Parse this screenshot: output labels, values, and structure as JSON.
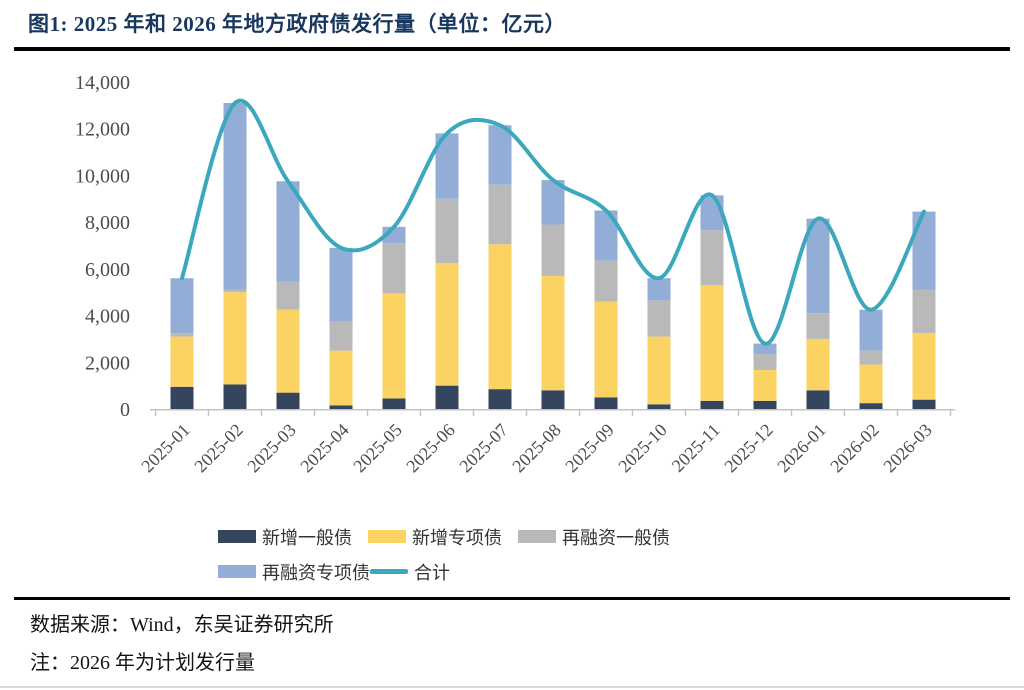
{
  "header": {
    "title": "图1:  2025 年和 2026 年地方政府债发行量（单位：亿元）"
  },
  "chart_data": {
    "type": "bar+line",
    "stacked": true,
    "title": "2025 年和 2026 年地方政府债发行量",
    "unit": "亿元",
    "categories": [
      "2025-01",
      "2025-02",
      "2025-03",
      "2025-04",
      "2025-05",
      "2025-06",
      "2025-07",
      "2025-08",
      "2025-09",
      "2025-10",
      "2025-11",
      "2025-12",
      "2026-01",
      "2026-02",
      "2026-03"
    ],
    "series": [
      {
        "name": "新增一般债",
        "color": "#36455e",
        "values": [
          950,
          1050,
          700,
          150,
          450,
          1000,
          850,
          800,
          500,
          200,
          350,
          350,
          800,
          250,
          400
        ]
      },
      {
        "name": "新增专项债",
        "color": "#fbd362",
        "values": [
          2150,
          3950,
          3550,
          2350,
          4500,
          5250,
          6200,
          4900,
          4100,
          2900,
          4950,
          1320,
          2200,
          1650,
          2850
        ]
      },
      {
        "name": "再融资一般债",
        "color": "#b9b9b9",
        "values": [
          150,
          100,
          1200,
          1250,
          2150,
          2750,
          2550,
          2200,
          1750,
          1550,
          2350,
          680,
          1100,
          600,
          1850
        ]
      },
      {
        "name": "再融资专项债",
        "color": "#93aed6",
        "values": [
          2350,
          8000,
          4300,
          3150,
          700,
          2800,
          2550,
          1900,
          2150,
          950,
          1500,
          450,
          4050,
          1750,
          3350
        ]
      }
    ],
    "line": {
      "name": "合计",
      "color": "#3ba8bd",
      "values": [
        5600,
        13100,
        9750,
        6900,
        7800,
        11800,
        12150,
        9800,
        8500,
        5600,
        9150,
        2800,
        8150,
        4250,
        8450
      ]
    },
    "ylim": [
      0,
      14000
    ],
    "yticks": [
      0,
      2000,
      4000,
      6000,
      8000,
      10000,
      12000,
      14000
    ],
    "grid": false,
    "legend_position": "bottom"
  },
  "footer": {
    "source": "数据来源：Wind，东吴证券研究所",
    "note": "注：2026 年为计划发行量"
  }
}
